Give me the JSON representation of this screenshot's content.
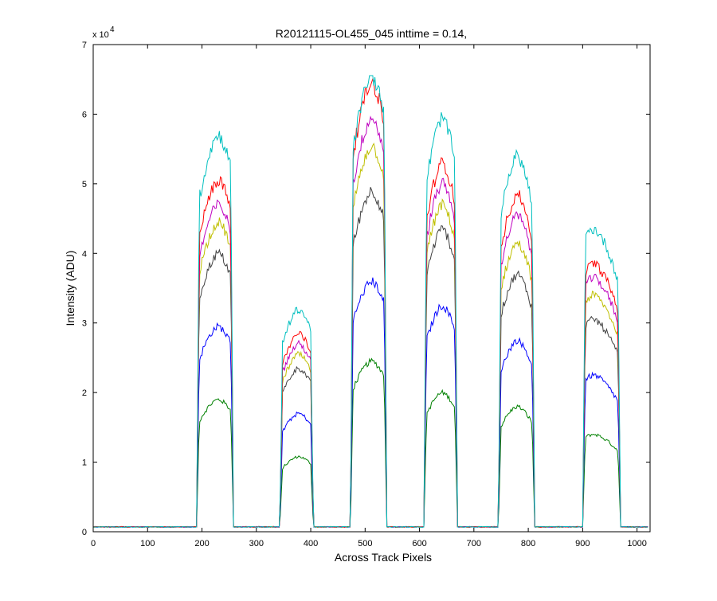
{
  "chart_data": {
    "type": "line",
    "title": "R20121115-OL455_045 inttime = 0.14,",
    "xlabel": "Across Track Pixels",
    "ylabel": "Intensity (ADU)",
    "xlim": [
      0,
      1024
    ],
    "ylim": [
      0,
      70000
    ],
    "x_ticks": [
      0,
      100,
      200,
      300,
      400,
      500,
      600,
      700,
      800,
      900,
      1000
    ],
    "y_ticks": [
      0,
      1,
      2,
      3,
      4,
      5,
      6,
      7
    ],
    "y_multiplier": {
      "base": "x 10",
      "exponent": "4"
    },
    "grid": false,
    "legend": "none",
    "baseline": 700,
    "blocks": [
      {
        "start": 190,
        "end": 258,
        "center": 230
      },
      {
        "start": 343,
        "end": 405,
        "center": 378
      },
      {
        "start": 473,
        "end": 540,
        "center": 512
      },
      {
        "start": 608,
        "end": 670,
        "center": 642
      },
      {
        "start": 745,
        "end": 812,
        "center": 780
      },
      {
        "start": 900,
        "end": 970,
        "center": 920
      }
    ],
    "series": [
      {
        "color": "#00bfbf",
        "peaks": [
          57000,
          32000,
          65500,
          59500,
          54000,
          43500
        ]
      },
      {
        "color": "#ff0000",
        "peaks": [
          50500,
          28500,
          64500,
          53000,
          48500,
          38500
        ]
      },
      {
        "color": "#bf00bf",
        "peaks": [
          47000,
          27000,
          59500,
          50000,
          45500,
          36500
        ]
      },
      {
        "color": "#bfbf00",
        "peaks": [
          44500,
          25500,
          55500,
          47000,
          41500,
          34000
        ]
      },
      {
        "color": "#404040",
        "peaks": [
          40000,
          23500,
          49000,
          43500,
          37000,
          30500
        ]
      },
      {
        "color": "#0000ff",
        "peaks": [
          29500,
          17000,
          36000,
          32500,
          27500,
          22500
        ]
      },
      {
        "color": "#008000",
        "peaks": [
          19000,
          10800,
          24500,
          20000,
          18000,
          14000
        ]
      }
    ]
  }
}
